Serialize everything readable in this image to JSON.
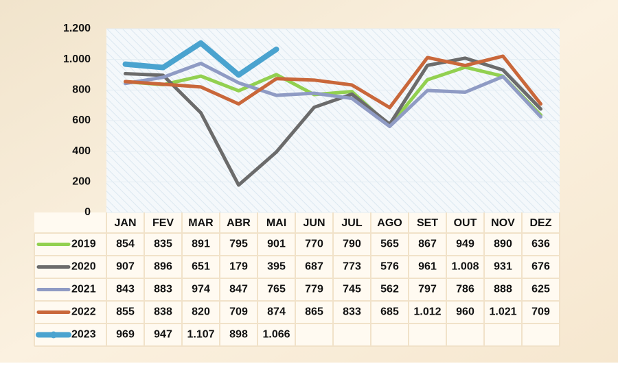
{
  "chart_data": {
    "type": "line",
    "categories": [
      "JAN",
      "FEV",
      "MAR",
      "ABR",
      "MAI",
      "JUN",
      "JUL",
      "AGO",
      "SET",
      "OUT",
      "NOV",
      "DEZ"
    ],
    "series": [
      {
        "name": "2019",
        "color": "#92d050",
        "values": [
          854,
          835,
          891,
          795,
          901,
          770,
          790,
          565,
          867,
          949,
          890,
          636
        ]
      },
      {
        "name": "2020",
        "color": "#6b6b6b",
        "values": [
          907,
          896,
          651,
          179,
          395,
          687,
          773,
          576,
          961,
          1008,
          931,
          676
        ],
        "value_labels": [
          "907",
          "896",
          "651",
          "179",
          "395",
          "687",
          "773",
          "576",
          "961",
          "1.008",
          "931",
          "676"
        ]
      },
      {
        "name": "2021",
        "color": "#8f9bc4",
        "values": [
          843,
          883,
          974,
          847,
          765,
          779,
          745,
          562,
          797,
          786,
          888,
          625
        ]
      },
      {
        "name": "2022",
        "color": "#c9673a",
        "values": [
          855,
          838,
          820,
          709,
          874,
          865,
          833,
          685,
          1012,
          960,
          1021,
          709
        ],
        "value_labels": [
          "855",
          "838",
          "820",
          "709",
          "874",
          "865",
          "833",
          "685",
          "1.012",
          "960",
          "1.021",
          "709"
        ]
      },
      {
        "name": "2023",
        "color": "#4aa3cf",
        "values": [
          969,
          947,
          1107,
          898,
          1066,
          null,
          null,
          null,
          null,
          null,
          null,
          null
        ],
        "value_labels": [
          "969",
          "947",
          "1.107",
          "898",
          "1.066",
          null,
          null,
          null,
          null,
          null,
          null,
          null
        ]
      }
    ],
    "ylim": [
      0,
      1200
    ],
    "yticks": [
      0,
      200,
      400,
      600,
      800,
      {
        "value": 1000,
        "label": "1.000"
      },
      {
        "value": 1200,
        "label": "1.200"
      }
    ],
    "grid": true
  }
}
